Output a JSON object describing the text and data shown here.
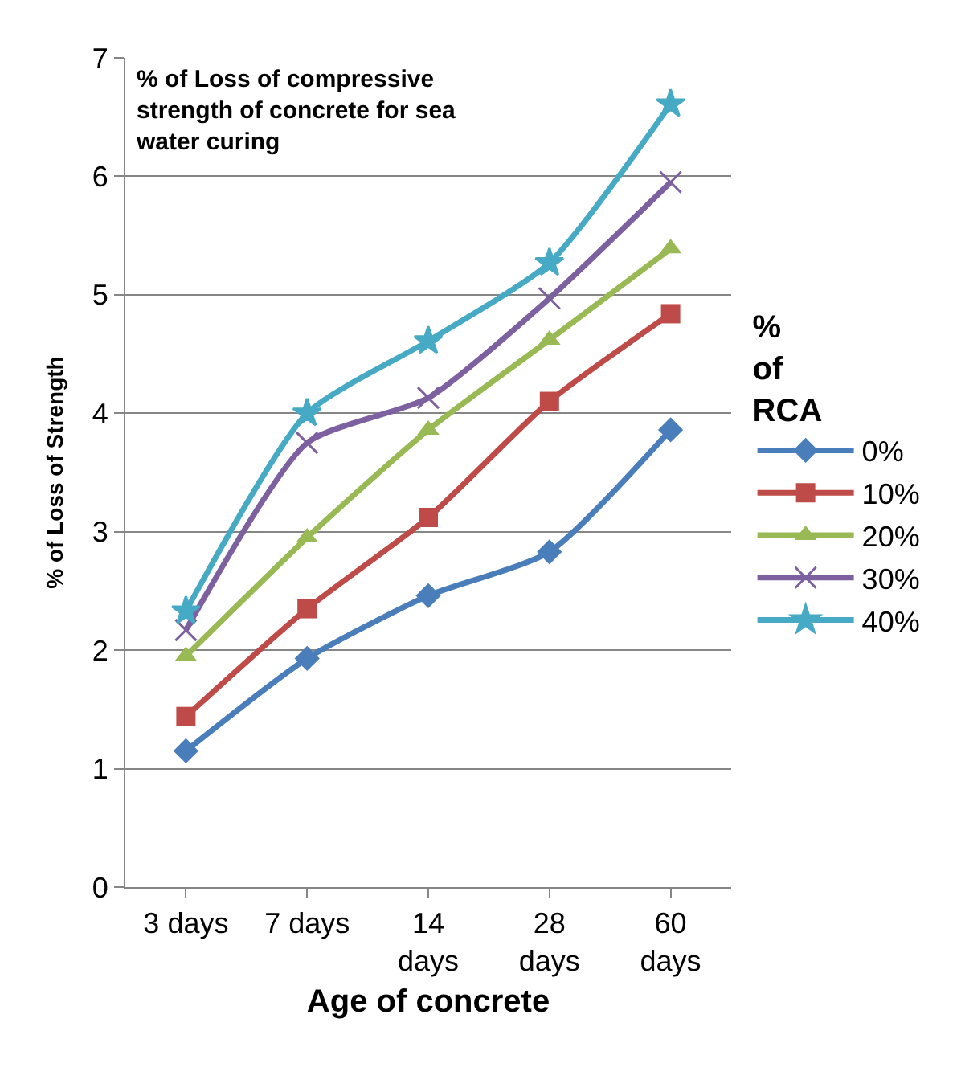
{
  "chart_data": {
    "type": "line",
    "title": "% of Loss of compressive strength of concrete for sea water curing",
    "xlabel": "Age of concrete",
    "ylabel": "% of Loss of Strength",
    "legend_title": "% of RCA",
    "categories": [
      "3 days",
      "7 days",
      "14 days",
      "28 days",
      "60 days"
    ],
    "series": [
      {
        "name": "0%",
        "color": "#4a7ebb",
        "marker": "diamond",
        "values": [
          1.15,
          1.93,
          2.46,
          2.83,
          3.86
        ]
      },
      {
        "name": "10%",
        "color": "#be4b48",
        "marker": "square",
        "values": [
          1.44,
          2.35,
          3.12,
          4.1,
          4.84
        ]
      },
      {
        "name": "20%",
        "color": "#98b954",
        "marker": "triangle",
        "values": [
          1.95,
          2.95,
          3.86,
          4.62,
          5.39
        ]
      },
      {
        "name": "30%",
        "color": "#7d60a0",
        "marker": "cross",
        "values": [
          2.17,
          3.75,
          4.13,
          4.97,
          5.95
        ]
      },
      {
        "name": "40%",
        "color": "#46aac5",
        "marker": "star",
        "values": [
          2.33,
          4.0,
          4.61,
          5.27,
          6.61
        ]
      }
    ],
    "ylim": [
      0,
      7
    ],
    "yticks": [
      0,
      1,
      2,
      3,
      4,
      5,
      6,
      7
    ],
    "grid": "y",
    "legend": "right",
    "line_style": "solid"
  }
}
